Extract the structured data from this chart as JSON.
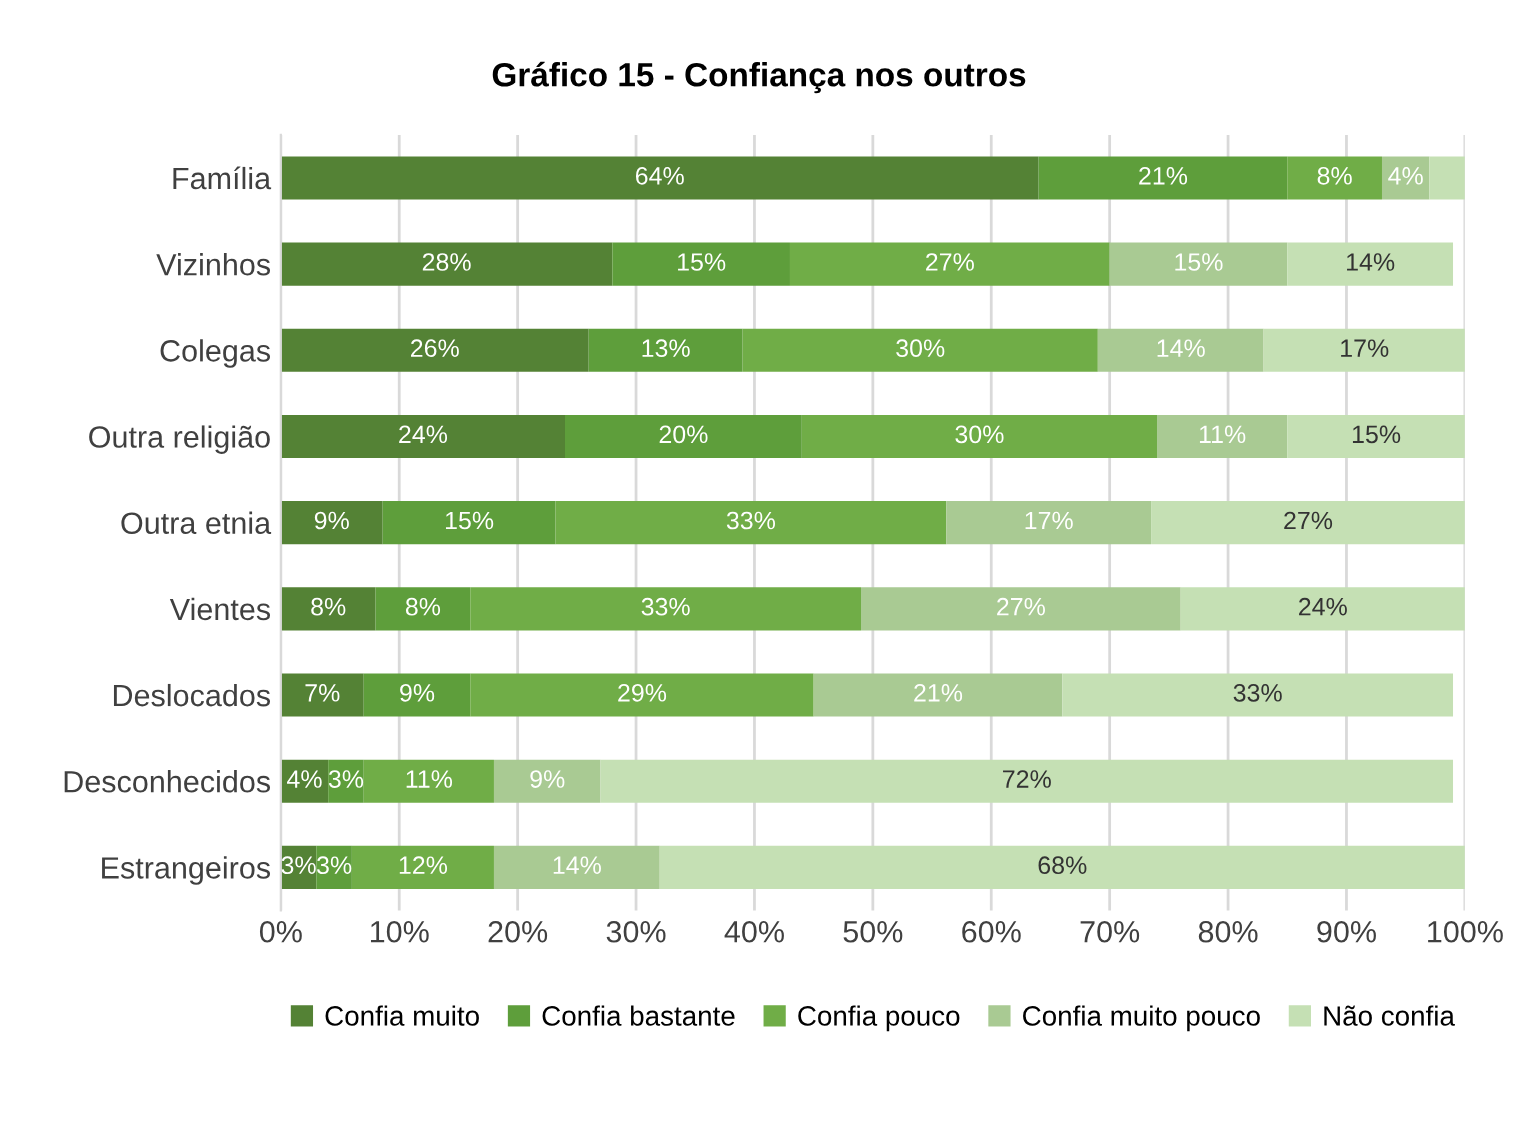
{
  "chart_data": {
    "type": "bar",
    "title": "Gráfico 15 - Confiança nos outros",
    "orientation": "horizontal",
    "stacked": true,
    "categories": [
      "Família",
      "Vizinhos",
      "Colegas",
      "Outra religião",
      "Outra etnia",
      "Vientes",
      "Deslocados",
      "Desconhecidos",
      "Estrangeiros"
    ],
    "series": [
      {
        "name": "Confia muito",
        "color": "#548235",
        "values": [
          64,
          28,
          26,
          24,
          8.6,
          8,
          7,
          4,
          3
        ],
        "value_labels": [
          "64%",
          "28%",
          "26%",
          "24%",
          "9%",
          "8%",
          "7%",
          "4%",
          "3%"
        ]
      },
      {
        "name": "Confia bastante",
        "color": "#5e9e3b",
        "values": [
          21,
          15,
          13,
          20,
          14.6,
          8,
          9,
          3,
          3
        ],
        "value_labels": [
          "21%",
          "15%",
          "13%",
          "20%",
          "15%",
          "8%",
          "9%",
          "3%",
          "3%"
        ]
      },
      {
        "name": "Confia pouco",
        "color": "#70ad47",
        "values": [
          8,
          27,
          30,
          30,
          33,
          33,
          29,
          11,
          12
        ],
        "value_labels": [
          "8%",
          "27%",
          "30%",
          "30%",
          "33%",
          "33%",
          "29%",
          "11%",
          "12%"
        ]
      },
      {
        "name": "Confia muito pouco",
        "color": "#a9ca93",
        "values": [
          4,
          15,
          14,
          11,
          17.3,
          27,
          21,
          9,
          14
        ],
        "value_labels": [
          "4%",
          "15%",
          "14%",
          "11%",
          "17%",
          "27%",
          "21%",
          "9%",
          "14%"
        ]
      },
      {
        "name": "Não confia",
        "color": "#c5e0b4",
        "values": [
          3,
          14,
          17,
          15,
          26.5,
          24,
          33,
          72,
          68
        ],
        "value_labels": [
          null,
          "14%",
          "17%",
          "15%",
          "27%",
          "24%",
          "33%",
          "72%",
          "68%"
        ]
      }
    ],
    "xlim": [
      0,
      100
    ],
    "xticks": [
      {
        "value": 0,
        "label": "0%"
      },
      {
        "value": 10,
        "label": "10%"
      },
      {
        "value": 20,
        "label": "20%"
      },
      {
        "value": 30,
        "label": "30%"
      },
      {
        "value": 40,
        "label": "40%"
      },
      {
        "value": 50,
        "label": "50%"
      },
      {
        "value": 60,
        "label": "60%"
      },
      {
        "value": 70,
        "label": "70%"
      },
      {
        "value": 80,
        "label": "80%"
      },
      {
        "value": 90,
        "label": "90%"
      },
      {
        "value": 100,
        "label": "100%"
      }
    ],
    "grid": "x",
    "legend": "bottom"
  }
}
